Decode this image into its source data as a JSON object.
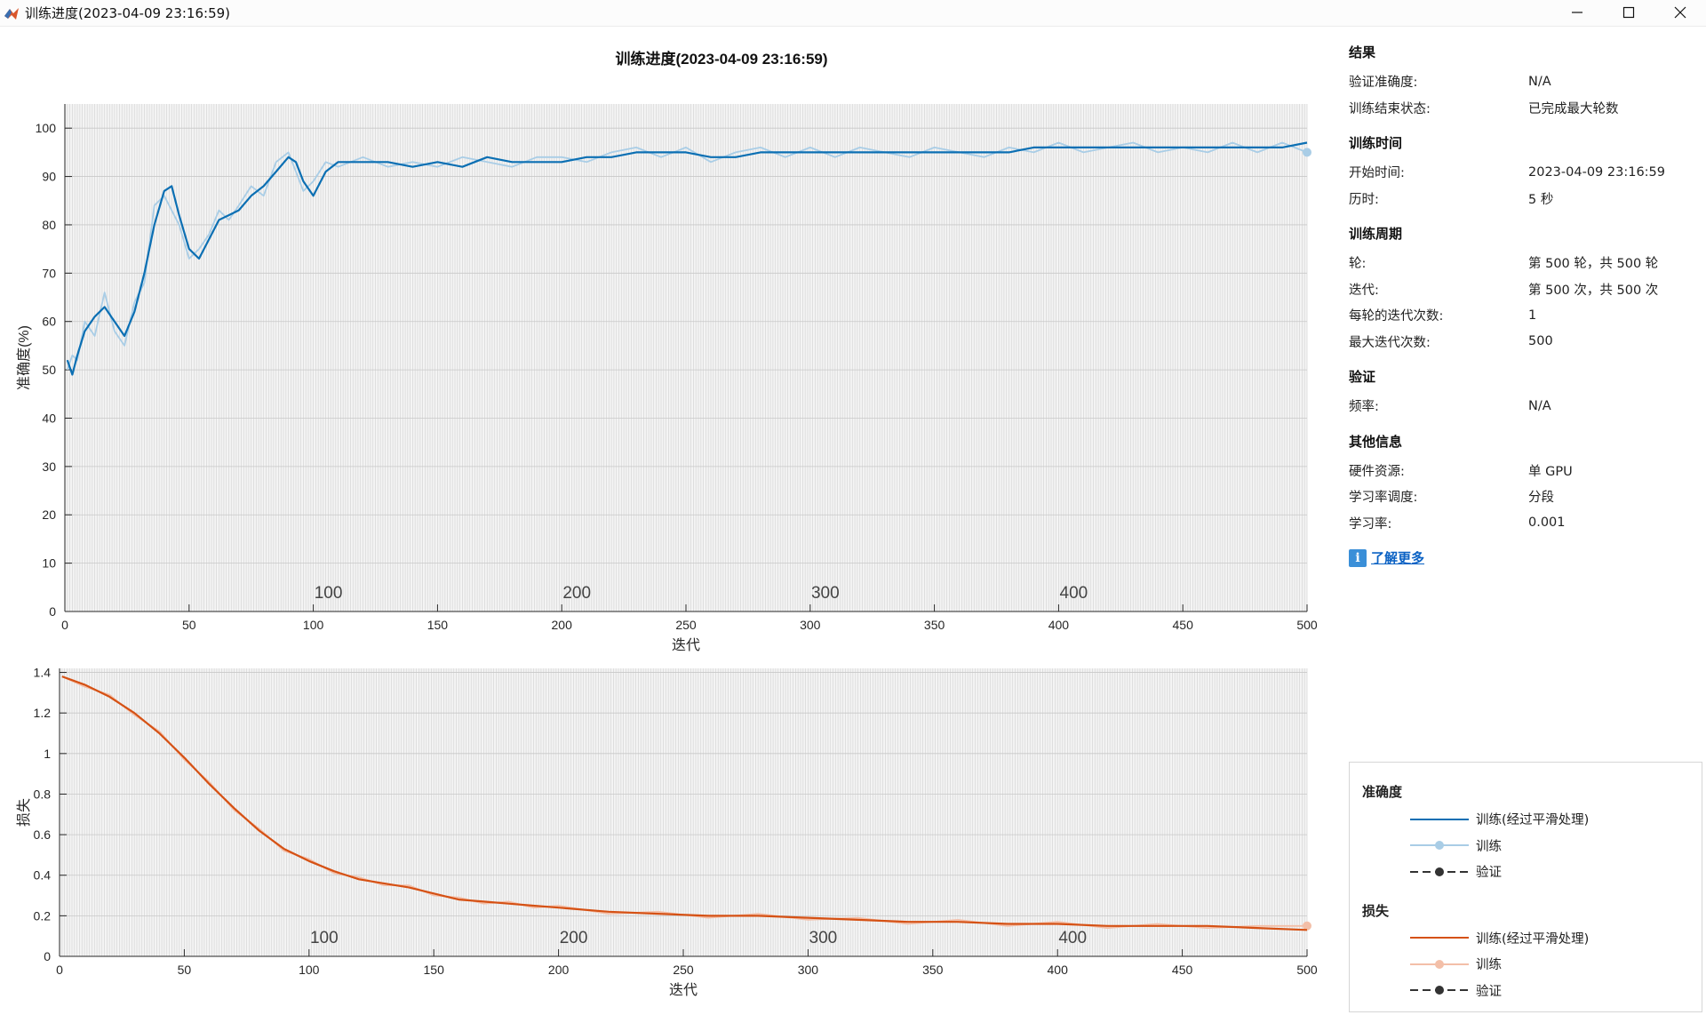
{
  "window": {
    "title": "训练进度(2023-04-09 23:16:59)",
    "buttons": [
      "minimize-icon",
      "maximize-icon",
      "close-icon"
    ]
  },
  "chart_data": [
    {
      "type": "line",
      "title": "训练进度(2023-04-09 23:16:59)",
      "xlabel": "迭代",
      "ylabel": "准确度(%)",
      "xlim": [
        0,
        500
      ],
      "ylim": [
        0,
        105
      ],
      "xticks": [
        0,
        50,
        100,
        150,
        200,
        250,
        300,
        350,
        400,
        450,
        500
      ],
      "yticks": [
        0,
        10,
        20,
        30,
        40,
        50,
        60,
        70,
        80,
        90,
        100
      ],
      "epoch_labels": [
        "100",
        "200",
        "300",
        "400"
      ],
      "grid": true,
      "series": [
        {
          "name": "训练(经过平滑处理)",
          "color": "#0b6fb3",
          "x": [
            1,
            3,
            5,
            8,
            12,
            16,
            20,
            24,
            28,
            32,
            36,
            40,
            43,
            46,
            50,
            54,
            58,
            62,
            66,
            70,
            75,
            80,
            85,
            90,
            93,
            96,
            100,
            105,
            110,
            120,
            130,
            140,
            150,
            160,
            170,
            180,
            190,
            200,
            210,
            220,
            230,
            240,
            250,
            260,
            270,
            280,
            290,
            300,
            310,
            320,
            330,
            340,
            350,
            360,
            370,
            380,
            390,
            400,
            410,
            420,
            430,
            440,
            450,
            460,
            470,
            480,
            490,
            500
          ],
          "y": [
            52,
            49,
            53,
            58,
            61,
            63,
            60,
            57,
            62,
            70,
            80,
            87,
            88,
            82,
            75,
            73,
            77,
            81,
            82,
            83,
            86,
            88,
            91,
            94,
            93,
            89,
            86,
            91,
            93,
            93,
            93,
            92,
            93,
            92,
            94,
            93,
            93,
            93,
            94,
            94,
            95,
            95,
            95,
            94,
            94,
            95,
            95,
            95,
            95,
            95,
            95,
            95,
            95,
            95,
            95,
            95,
            96,
            96,
            96,
            96,
            96,
            96,
            96,
            96,
            96,
            96,
            96,
            97
          ]
        },
        {
          "name": "训练",
          "color": "#a9cde6",
          "x": [
            1,
            3,
            5,
            8,
            12,
            16,
            20,
            24,
            28,
            32,
            36,
            40,
            43,
            46,
            50,
            54,
            58,
            62,
            66,
            70,
            75,
            80,
            85,
            90,
            93,
            96,
            100,
            105,
            110,
            120,
            130,
            140,
            150,
            160,
            170,
            180,
            190,
            200,
            210,
            220,
            230,
            240,
            250,
            260,
            270,
            280,
            290,
            300,
            310,
            320,
            330,
            340,
            350,
            360,
            370,
            380,
            390,
            400,
            410,
            420,
            430,
            440,
            450,
            460,
            470,
            480,
            490,
            500
          ],
          "y": [
            50,
            53,
            52,
            60,
            57,
            66,
            58,
            55,
            64,
            68,
            84,
            86,
            83,
            80,
            73,
            75,
            78,
            83,
            81,
            84,
            88,
            86,
            93,
            95,
            91,
            87,
            89,
            93,
            92,
            94,
            92,
            93,
            92,
            94,
            93,
            92,
            94,
            94,
            93,
            95,
            96,
            94,
            96,
            93,
            95,
            96,
            94,
            96,
            94,
            96,
            95,
            94,
            96,
            95,
            94,
            96,
            95,
            97,
            95,
            96,
            97,
            95,
            96,
            95,
            97,
            95,
            97,
            95
          ]
        }
      ]
    },
    {
      "type": "line",
      "xlabel": "迭代",
      "ylabel": "损失",
      "xlim": [
        0,
        500
      ],
      "ylim": [
        0,
        1.42
      ],
      "xticks": [
        0,
        50,
        100,
        150,
        200,
        250,
        300,
        350,
        400,
        450,
        500
      ],
      "yticks": [
        0,
        0.2,
        0.4,
        0.6,
        0.8,
        1,
        1.2,
        1.4
      ],
      "ytick_labels": [
        "0",
        "0.2",
        "0.4",
        "0.6",
        "0.8",
        "1",
        "1.2",
        "1.4"
      ],
      "epoch_labels": [
        "100",
        "200",
        "300",
        "400"
      ],
      "grid": true,
      "series": [
        {
          "name": "训练(经过平滑处理)",
          "color": "#d55114",
          "x": [
            1,
            10,
            20,
            30,
            40,
            50,
            60,
            70,
            80,
            90,
            100,
            110,
            120,
            130,
            140,
            150,
            160,
            170,
            180,
            190,
            200,
            220,
            240,
            260,
            280,
            300,
            320,
            340,
            360,
            380,
            400,
            420,
            440,
            460,
            480,
            500
          ],
          "y": [
            1.38,
            1.34,
            1.28,
            1.2,
            1.1,
            0.98,
            0.85,
            0.73,
            0.62,
            0.53,
            0.47,
            0.42,
            0.38,
            0.36,
            0.34,
            0.31,
            0.28,
            0.27,
            0.26,
            0.25,
            0.24,
            0.22,
            0.21,
            0.2,
            0.2,
            0.19,
            0.18,
            0.17,
            0.17,
            0.16,
            0.16,
            0.15,
            0.15,
            0.15,
            0.14,
            0.13
          ]
        },
        {
          "name": "训练",
          "color": "#f3bfa8",
          "x": [
            1,
            10,
            20,
            30,
            40,
            50,
            60,
            70,
            80,
            90,
            100,
            110,
            120,
            130,
            140,
            150,
            160,
            170,
            180,
            190,
            200,
            220,
            240,
            260,
            280,
            300,
            320,
            340,
            360,
            380,
            400,
            420,
            440,
            460,
            480,
            500
          ],
          "y": [
            1.38,
            1.33,
            1.29,
            1.19,
            1.11,
            0.97,
            0.86,
            0.72,
            0.63,
            0.52,
            0.48,
            0.41,
            0.39,
            0.35,
            0.35,
            0.3,
            0.29,
            0.26,
            0.27,
            0.24,
            0.25,
            0.21,
            0.22,
            0.19,
            0.21,
            0.18,
            0.19,
            0.16,
            0.18,
            0.15,
            0.17,
            0.14,
            0.16,
            0.14,
            0.15,
            0.15
          ]
        }
      ]
    }
  ],
  "info": {
    "results": {
      "heading": "结果",
      "rows": [
        {
          "k": "验证准确度:",
          "v": "N/A"
        },
        {
          "k": "训练结束状态:",
          "v": "已完成最大轮数"
        }
      ]
    },
    "time": {
      "heading": "训练时间",
      "rows": [
        {
          "k": "开始时间:",
          "v": "2023-04-09 23:16:59"
        },
        {
          "k": "历时:",
          "v": "5 秒"
        }
      ]
    },
    "cycle": {
      "heading": "训练周期",
      "rows": [
        {
          "k": "轮:",
          "v": "第 500 轮，共 500 轮"
        },
        {
          "k": "迭代:",
          "v": "第 500 次，共 500 次"
        },
        {
          "k": "每轮的迭代次数:",
          "v": "1"
        },
        {
          "k": "最大迭代次数:",
          "v": "500"
        }
      ]
    },
    "validation": {
      "heading": "验证",
      "rows": [
        {
          "k": "频率:",
          "v": "N/A"
        }
      ]
    },
    "other": {
      "heading": "其他信息",
      "rows": [
        {
          "k": "硬件资源:",
          "v": "单 GPU"
        },
        {
          "k": "学习率调度:",
          "v": "分段"
        },
        {
          "k": "学习率:",
          "v": "0.001"
        }
      ]
    },
    "learn_more": "了解更多"
  },
  "legend": {
    "accuracy_heading": "准确度",
    "accuracy_items": [
      {
        "label": "训练(经过平滑处理)",
        "color": "#0b6fb3",
        "style": "solid"
      },
      {
        "label": "训练",
        "color": "#a9cde6",
        "style": "dot"
      },
      {
        "label": "验证",
        "color": "#333333",
        "style": "dashed-dot"
      }
    ],
    "loss_heading": "损失",
    "loss_items": [
      {
        "label": "训练(经过平滑处理)",
        "color": "#d55114",
        "style": "solid"
      },
      {
        "label": "训练",
        "color": "#f3bfa8",
        "style": "dot"
      },
      {
        "label": "验证",
        "color": "#333333",
        "style": "dashed-dot"
      }
    ]
  }
}
